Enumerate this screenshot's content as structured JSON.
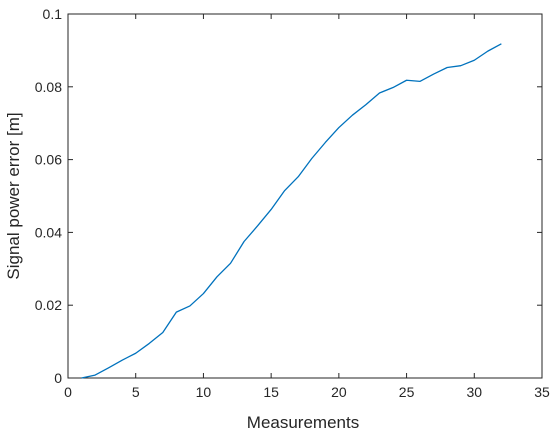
{
  "chart_data": {
    "type": "line",
    "title": "",
    "xlabel": "Measurements",
    "ylabel": "Signal power error [m]",
    "xlim": [
      0,
      35
    ],
    "ylim": [
      0,
      0.1
    ],
    "xticks": [
      0,
      5,
      10,
      15,
      20,
      25,
      30,
      35
    ],
    "yticks": [
      0,
      0.02,
      0.04,
      0.06,
      0.08,
      0.1
    ],
    "xtick_labels": [
      "0",
      "5",
      "10",
      "15",
      "20",
      "25",
      "30",
      "35"
    ],
    "ytick_labels": [
      "0",
      "0.02",
      "0.04",
      "0.06",
      "0.08",
      "0.1"
    ],
    "grid": false,
    "box": true,
    "series": [
      {
        "color": "#0072BD",
        "x": [
          1,
          2,
          3,
          4,
          5,
          6,
          7,
          8,
          9,
          10,
          11,
          12,
          13,
          14,
          15,
          16,
          17,
          18,
          19,
          20,
          21,
          22,
          23,
          24,
          25,
          26,
          27,
          28,
          29,
          30,
          31,
          32
        ],
        "y": [
          0.0,
          0.0008,
          0.0028,
          0.0049,
          0.0068,
          0.0095,
          0.0125,
          0.0181,
          0.0198,
          0.0232,
          0.0278,
          0.0315,
          0.0375,
          0.0418,
          0.0463,
          0.0515,
          0.0553,
          0.0603,
          0.0647,
          0.0688,
          0.0722,
          0.0751,
          0.0783,
          0.0798,
          0.0818,
          0.0815,
          0.0835,
          0.0853,
          0.0858,
          0.0873,
          0.0898,
          0.0918
        ]
      }
    ]
  }
}
